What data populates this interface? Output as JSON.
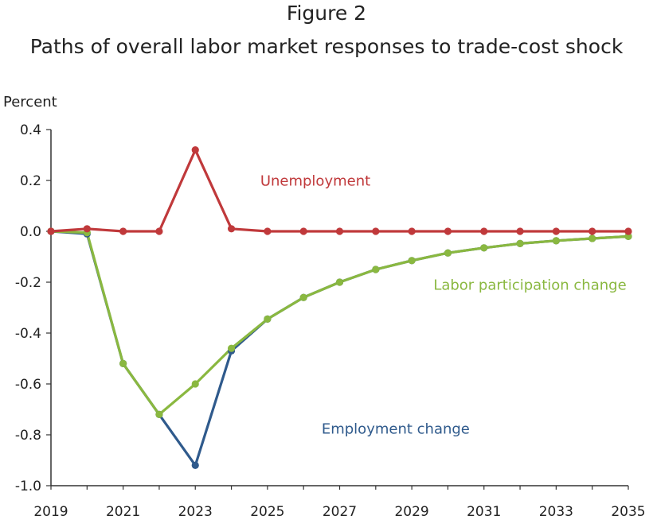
{
  "figure": {
    "label": "Figure 2",
    "title": "Paths of overall labor market responses to trade-cost shock"
  },
  "chart_data": {
    "type": "line",
    "title": "Paths of overall labor market responses to trade-cost shock",
    "ylabel": "Percent",
    "xlabel": "",
    "ylim": [
      -1.0,
      0.4
    ],
    "xlim": [
      2019,
      2035
    ],
    "yticks": [
      "0.4",
      "0.2",
      "0.0",
      "-0.2",
      "-0.4",
      "-0.6",
      "-0.8",
      "-1.0"
    ],
    "xticks": [
      "2019",
      "2021",
      "2023",
      "2025",
      "2027",
      "2029",
      "2031",
      "2033",
      "2035"
    ],
    "grid": false,
    "x": [
      2019,
      2020,
      2021,
      2022,
      2023,
      2024,
      2025,
      2026,
      2027,
      2028,
      2029,
      2030,
      2031,
      2032,
      2033,
      2034,
      2035
    ],
    "series": [
      {
        "name": "Employment change",
        "color": "#2f5a8c",
        "values": [
          0.0,
          -0.01,
          -0.52,
          -0.72,
          -0.92,
          -0.47,
          -0.345,
          -0.26,
          -0.2,
          -0.15,
          -0.115,
          -0.085,
          -0.065,
          -0.048,
          -0.037,
          -0.028,
          -0.02
        ]
      },
      {
        "name": "Labor participation change",
        "color": "#8ab840",
        "values": [
          0.0,
          -0.005,
          -0.52,
          -0.72,
          -0.6,
          -0.46,
          -0.345,
          -0.26,
          -0.2,
          -0.15,
          -0.115,
          -0.085,
          -0.065,
          -0.048,
          -0.037,
          -0.028,
          -0.02
        ]
      },
      {
        "name": "Unemployment",
        "color": "#c0393b",
        "values": [
          0.0,
          0.01,
          0.0,
          0.0,
          0.32,
          0.01,
          0.0,
          0.0,
          0.0,
          0.0,
          0.0,
          0.0,
          0.0,
          0.0,
          0.0,
          0.0,
          0.0
        ]
      }
    ],
    "annotations": [
      {
        "text": "Unemployment",
        "series": "Unemployment",
        "x": 2024.8,
        "y": 0.18,
        "color": "#c0393b"
      },
      {
        "text": "Labor participation change",
        "series": "Labor participation change",
        "x": 2029.6,
        "y": -0.23,
        "color": "#8ab840"
      },
      {
        "text": "Employment change",
        "series": "Employment change",
        "x": 2026.5,
        "y": -0.795,
        "color": "#2f5a8c"
      }
    ]
  }
}
